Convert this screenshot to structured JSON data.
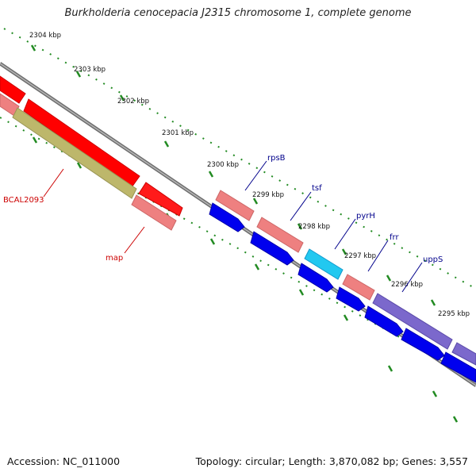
{
  "title": "Burkholderia cenocepacia J2315 chromosome 1, complete genome",
  "footer": {
    "accession": "Accession: NC_011000",
    "summary": "Topology: circular; Length: 3,870,082 bp; Genes: 3,557"
  },
  "ticks": [
    "2304 kbp",
    "2303 kbp",
    "2302 kbp",
    "2301 kbp",
    "2300 kbp",
    "2299 kbp",
    "2298 kbp",
    "2297 kbp",
    "2296 kbp",
    "2295 kbp"
  ],
  "genes": [
    {
      "name": "rpsB",
      "color": "#00008b"
    },
    {
      "name": "tsf",
      "color": "#00008b"
    },
    {
      "name": "pyrH",
      "color": "#00008b"
    },
    {
      "name": "frr",
      "color": "#00008b"
    },
    {
      "name": "uppS",
      "color": "#00008b"
    },
    {
      "name": "BCAL2093",
      "color": "#cc0000"
    },
    {
      "name": "map",
      "color": "#cc0000"
    }
  ],
  "colors": {
    "backbone": "#808080",
    "tick_dots": "#228b22",
    "cds_red": "#ff0000",
    "cds_pink": "#ee8080",
    "cds_blue": "#0000ee",
    "cds_cyan": "#22c8f0",
    "cds_olive": "#bdb76b",
    "cds_purple": "#7b68cc"
  }
}
